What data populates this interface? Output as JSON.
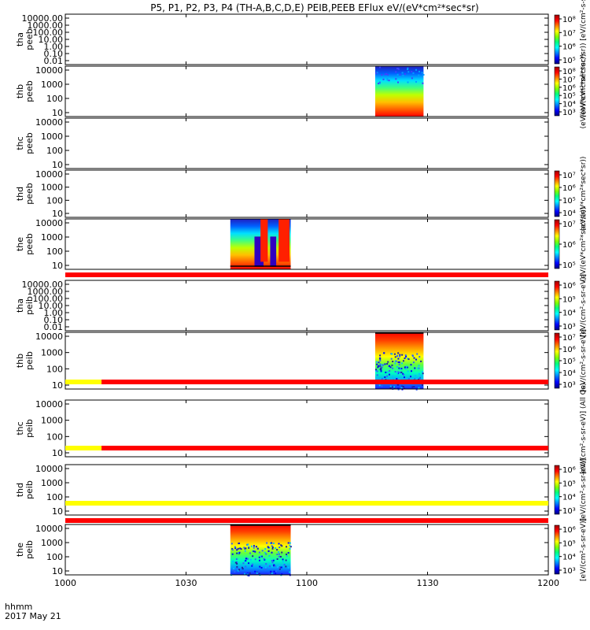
{
  "title": "P5, P1, P2, P3, P4 (TH-A,B,C,D,E) PEIB,PEEB EFlux eV/(eV*cm²*sec*sr)",
  "time_axis": {
    "corner_line1": "hhmm",
    "corner_line2": "2017 May 21",
    "ticks": [
      "1000",
      "1030",
      "1100",
      "1130",
      "1200"
    ],
    "range_minutes": [
      0,
      120
    ]
  },
  "colorbar_colors": [
    "#000080",
    "#0000ff",
    "#0080ff",
    "#00ffff",
    "#00ff80",
    "#80ff00",
    "#ffff00",
    "#ff8000",
    "#ff0000",
    "#a00000"
  ],
  "chart_data": [
    {
      "type": "heatmap",
      "name": "tha peeb",
      "ylabel": [
        "tha",
        "peeb"
      ],
      "yticks": [
        "10000.00",
        "1000.00",
        "100.00",
        "10.00",
        "1.00",
        "0.10",
        "0.01"
      ],
      "colorbar_ticks": [
        "10⁸",
        "10⁷",
        "10⁶",
        "10⁵"
      ],
      "colorbar_label": "(eV/(eV*cm²*sec*sr)) [eV/(cm²-s-sr-eV)] (All)",
      "data_blocks": []
    },
    {
      "type": "heatmap",
      "name": "thb peeb",
      "ylabel": [
        "thb",
        "peeb"
      ],
      "yticks": [
        "10000",
        "1000",
        "100",
        "10"
      ],
      "colorbar_ticks": [
        "10⁸",
        "10⁷",
        "10⁶",
        "10⁵",
        "10⁴",
        "10³"
      ],
      "colorbar_label": "(eV/(eV*cm²*sec*sr))",
      "data_blocks": [
        {
          "start_min": 77,
          "end_min": 89,
          "style": "eflux_low_high"
        }
      ]
    },
    {
      "type": "heatmap",
      "name": "thc peeb",
      "ylabel": [
        "thc",
        "peeb"
      ],
      "yticks": [
        "10000",
        "1000",
        "100",
        "10"
      ],
      "colorbar_ticks": [],
      "colorbar_label": "",
      "data_blocks": []
    },
    {
      "type": "heatmap",
      "name": "thd peeb",
      "ylabel": [
        "thd",
        "peeb"
      ],
      "yticks": [
        "10000",
        "1000",
        "100",
        "10"
      ],
      "colorbar_ticks": [
        "10⁷",
        "10⁶",
        "10⁵",
        "10⁴"
      ],
      "colorbar_label": "(eV/(eV*cm²*sec*sr))",
      "data_blocks": []
    },
    {
      "type": "heatmap",
      "name": "the peeb",
      "ylabel": [
        "the",
        "peeb"
      ],
      "yticks": [
        "10000",
        "1000",
        "100",
        "10"
      ],
      "colorbar_ticks": [
        "10⁷",
        "10⁶",
        "10⁵"
      ],
      "colorbar_label": "(eV/(eV*cm²*sec*sr))",
      "data_blocks": [
        {
          "start_min": 41,
          "end_min": 56,
          "style": "spiky"
        }
      ]
    },
    {
      "type": "heatmap",
      "name": "tha peib",
      "ylabel": [
        "tha",
        "peib"
      ],
      "yticks": [
        "10000.00",
        "1000.00",
        "100.00",
        "10.00",
        "1.00",
        "0.10",
        "0.01"
      ],
      "colorbar_ticks": [
        "10⁶",
        "10⁵",
        "10⁴",
        "10³"
      ],
      "colorbar_label": "[eV/(cm²-s-sr-eV)]",
      "data_blocks": []
    },
    {
      "type": "heatmap",
      "name": "thb peib",
      "ylabel": [
        "thb",
        "peib"
      ],
      "yticks": [
        "10000",
        "1000",
        "100",
        "10"
      ],
      "colorbar_ticks": [
        "10⁷",
        "10⁶",
        "10⁵",
        "10⁴",
        "10³"
      ],
      "colorbar_label": "[eV/(cm²-s-sr-eV)]",
      "data_blocks": [
        {
          "start_min": 77,
          "end_min": 89,
          "style": "ion_noisy"
        }
      ]
    },
    {
      "type": "heatmap",
      "name": "thc peib",
      "ylabel": [
        "thc",
        "peib"
      ],
      "yticks": [
        "10000",
        "1000",
        "100",
        "10"
      ],
      "colorbar_ticks": [],
      "colorbar_label": "[eV/(cm²-s-sr-eV)] (All Qs)",
      "data_blocks": []
    },
    {
      "type": "heatmap",
      "name": "thd peib",
      "ylabel": [
        "thd",
        "peib"
      ],
      "yticks": [
        "10000",
        "1000",
        "100",
        "10"
      ],
      "colorbar_ticks": [
        "10⁶",
        "10⁵",
        "10⁴",
        "10³"
      ],
      "colorbar_label": "[eV/(cm²-s-sr-eV)]",
      "data_blocks": []
    },
    {
      "type": "heatmap",
      "name": "the peib",
      "ylabel": [
        "the",
        "peib"
      ],
      "yticks": [
        "10000",
        "1000",
        "100",
        "10"
      ],
      "colorbar_ticks": [
        "10⁶",
        "10⁵",
        "10⁴",
        "10³"
      ],
      "colorbar_label": "[eV/(cm²-s-sr-eV)]",
      "data_blocks": [
        {
          "start_min": 41,
          "end_min": 56,
          "style": "ion_noisy"
        }
      ]
    }
  ],
  "status_bars": [
    {
      "after_panel": 4,
      "segments": [
        {
          "start_min": 0,
          "end_min": 120,
          "color": "#ff0000"
        }
      ]
    },
    {
      "after_panel": 5,
      "segments": [
        {
          "start_min": 0,
          "end_min": 9,
          "color": "#ffff00"
        },
        {
          "start_min": 9,
          "end_min": 120,
          "color": "#ff0000"
        }
      ]
    },
    {
      "after_panel": 6,
      "segments": [
        {
          "start_min": 0,
          "end_min": 9,
          "color": "#ffff00"
        },
        {
          "start_min": 9,
          "end_min": 120,
          "color": "#ff0000"
        }
      ]
    },
    {
      "after_panel": 7,
      "segments": [
        {
          "start_min": 0,
          "end_min": 120,
          "color": "#ffff00"
        }
      ]
    },
    {
      "after_panel": 8,
      "segments": [
        {
          "start_min": 0,
          "end_min": 120,
          "color": "#ff0000"
        }
      ]
    }
  ]
}
